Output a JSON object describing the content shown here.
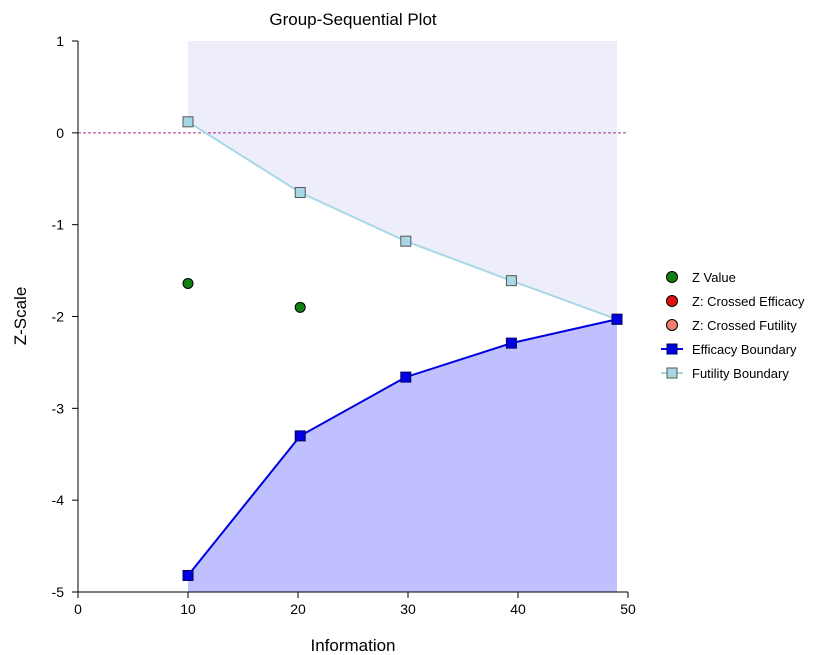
{
  "chart_data": {
    "type": "line",
    "title": "Group-Sequential Plot",
    "xlabel": "Information",
    "ylabel": "Z-Scale",
    "xlim": [
      0,
      50
    ],
    "ylim": [
      -5,
      1
    ],
    "x_ticks": [
      "0",
      "10",
      "20",
      "30",
      "40",
      "50"
    ],
    "y_ticks": [
      "1",
      "0",
      "-1",
      "-2",
      "-3",
      "-4",
      "-5"
    ],
    "reference_line_y": 0,
    "legend_position": "right",
    "series": [
      {
        "name": "Z Value",
        "kind": "points",
        "marker": "circle",
        "color": "#108010",
        "x": [
          10.0,
          20.2
        ],
        "y": [
          -1.64,
          -1.9
        ]
      },
      {
        "name": "Z: Crossed Efficacy",
        "kind": "points",
        "marker": "circle",
        "color": "#e01010",
        "x": [],
        "y": []
      },
      {
        "name": "Z: Crossed Futility",
        "kind": "points",
        "marker": "circle",
        "color": "#f08070",
        "x": [],
        "y": []
      },
      {
        "name": "Efficacy Boundary",
        "kind": "line",
        "marker": "square",
        "color": "#0000e0",
        "marker_fill": "#0000e0",
        "x": [
          10.0,
          20.2,
          29.8,
          39.4,
          49.0
        ],
        "y": [
          -4.82,
          -3.3,
          -2.66,
          -2.29,
          -2.03
        ]
      },
      {
        "name": "Futility Boundary",
        "kind": "line",
        "marker": "square",
        "color": "#a8d8e8",
        "marker_fill": "#a8d8e8",
        "x": [
          10.0,
          20.2,
          29.8,
          39.4,
          49.0
        ],
        "y": [
          0.12,
          -0.65,
          -1.18,
          -1.61,
          -2.03
        ]
      }
    ],
    "colors": {
      "efficacy_region": "#c0c0ff",
      "futility_region": "#eeeefa",
      "reference_line": "#a03090"
    }
  }
}
